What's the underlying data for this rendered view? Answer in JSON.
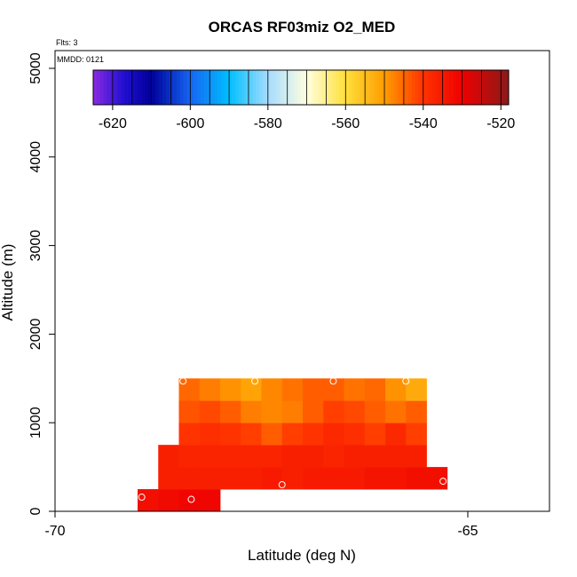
{
  "chart_data": {
    "type": "heatmap",
    "title": "ORCAS RF03miz O2_MED",
    "flts_label": "Flts: 3",
    "mmdd_label": "MMDD: 0121",
    "xlabel": "Latitude (deg N)",
    "ylabel": "Altitude (m)",
    "xlim": [
      -70,
      -64
    ],
    "ylim": [
      0,
      5200
    ],
    "x_ticks": [
      {
        "value": -70,
        "label": "-70"
      },
      {
        "value": -65,
        "label": "-65"
      }
    ],
    "y_ticks": [
      {
        "value": 0,
        "label": "0"
      },
      {
        "value": 1000,
        "label": "1000"
      },
      {
        "value": 2000,
        "label": "2000"
      },
      {
        "value": 3000,
        "label": "3000"
      },
      {
        "value": 4000,
        "label": "4000"
      },
      {
        "value": 5000,
        "label": "5000"
      }
    ],
    "colorbar": {
      "min": -625,
      "max": -518,
      "step": 5,
      "ticks": [
        {
          "value": -620,
          "label": "-620"
        },
        {
          "value": -600,
          "label": "-600"
        },
        {
          "value": -580,
          "label": "-580"
        },
        {
          "value": -560,
          "label": "-560"
        },
        {
          "value": -540,
          "label": "-540"
        },
        {
          "value": -520,
          "label": "-520"
        }
      ],
      "stops": [
        {
          "value": -625,
          "color": "#8a2be2"
        },
        {
          "value": -617,
          "color": "#1f0fd0"
        },
        {
          "value": -610,
          "color": "#000099"
        },
        {
          "value": -600,
          "color": "#1565f2"
        },
        {
          "value": -590,
          "color": "#00bfff"
        },
        {
          "value": -580,
          "color": "#a6dcff"
        },
        {
          "value": -570,
          "color": "#ffffdf"
        },
        {
          "value": -560,
          "color": "#ffe03a"
        },
        {
          "value": -550,
          "color": "#ff9c00"
        },
        {
          "value": -540,
          "color": "#ff3300"
        },
        {
          "value": -530,
          "color": "#ee0000"
        },
        {
          "value": -518,
          "color": "#8b1a1a"
        }
      ]
    },
    "cell_width_deg": 0.25,
    "cell_height_m": 250,
    "rows": [
      {
        "alt_min": 0,
        "alt_max": 250,
        "lat_start": -69.0,
        "values": [
          -533,
          -532,
          -531,
          -531
        ]
      },
      {
        "alt_min": 250,
        "alt_max": 500,
        "lat_start": -68.75,
        "values": [
          -536,
          -536,
          -536,
          -536,
          -536,
          -535,
          -536,
          -535,
          -535,
          -535,
          -534,
          -534,
          -533,
          -533
        ]
      },
      {
        "alt_min": 500,
        "alt_max": 750,
        "lat_start": -68.75,
        "values": [
          -536,
          -537,
          -537,
          -537,
          -537,
          -537,
          -536,
          -536,
          -537,
          -536,
          -536,
          -536,
          -536
        ]
      },
      {
        "alt_min": 750,
        "alt_max": 1000,
        "lat_start": -68.5,
        "values": [
          -540,
          -539,
          -540,
          -541,
          -544,
          -541,
          -540,
          -538,
          -539,
          -541,
          -538,
          -541
        ]
      },
      {
        "alt_min": 1000,
        "alt_max": 1250,
        "lat_start": -68.5,
        "values": [
          -543,
          -542,
          -544,
          -547,
          -548,
          -547,
          -544,
          -541,
          -542,
          -544,
          -546,
          -544
        ]
      },
      {
        "alt_min": 1250,
        "alt_max": 1500,
        "lat_start": -68.5,
        "values": [
          -545,
          -547,
          -549,
          -551,
          -548,
          -546,
          -544,
          -544,
          -546,
          -545,
          -549,
          -552
        ]
      }
    ],
    "points": [
      {
        "lat": -68.95,
        "alt": 160
      },
      {
        "lat": -68.35,
        "alt": 135
      },
      {
        "lat": -67.25,
        "alt": 300
      },
      {
        "lat": -65.3,
        "alt": 340
      },
      {
        "lat": -68.45,
        "alt": 1470
      },
      {
        "lat": -67.58,
        "alt": 1470
      },
      {
        "lat": -66.63,
        "alt": 1470
      },
      {
        "lat": -65.75,
        "alt": 1470
      }
    ]
  }
}
